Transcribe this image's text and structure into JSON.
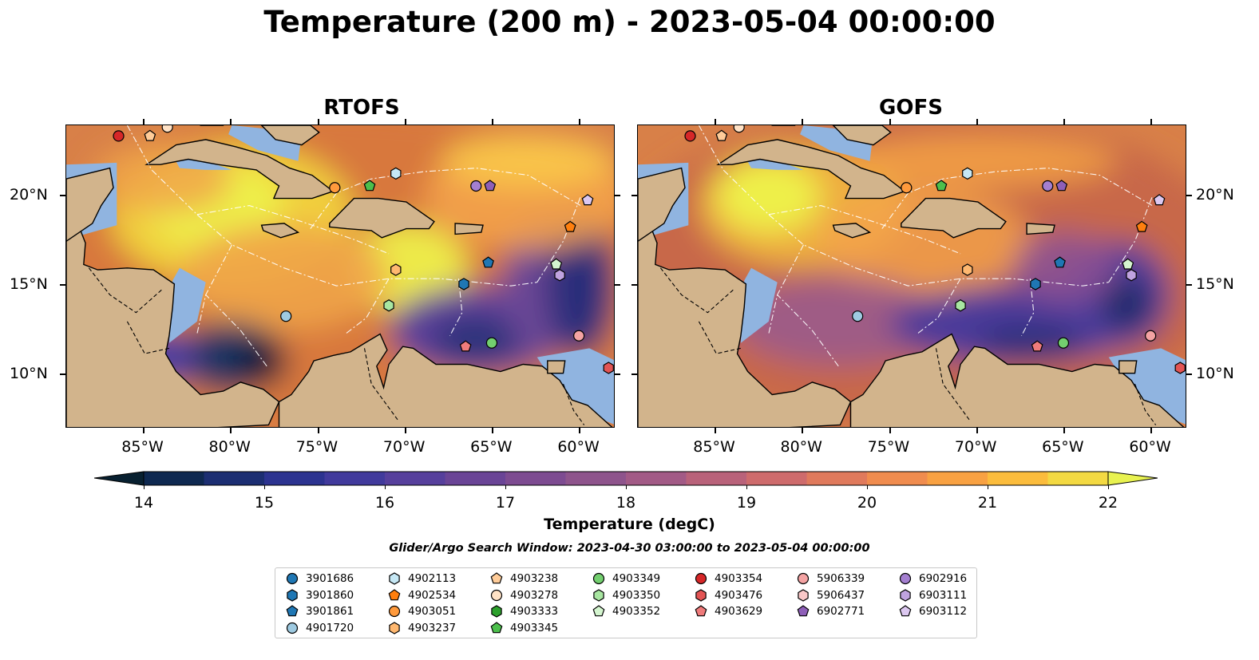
{
  "title": "Temperature (200 m) - 2023-05-04 00:00:00",
  "panels": [
    {
      "title": "RTOFS"
    },
    {
      "title": "GOFS"
    }
  ],
  "axes": {
    "x_ticks": [
      "85°W",
      "80°W",
      "75°W",
      "70°W",
      "65°W",
      "60°W"
    ],
    "y_ticks": [
      "20°N",
      "15°N",
      "10°N"
    ],
    "lon_range": [
      -89.5,
      -58.0
    ],
    "lat_range": [
      7.0,
      24.0
    ]
  },
  "colorbar": {
    "label": "Temperature (degC)",
    "ticks": [
      "14",
      "15",
      "16",
      "17",
      "18",
      "19",
      "20",
      "21",
      "22"
    ],
    "range": [
      14,
      22
    ],
    "step": 0.5,
    "extend": "both"
  },
  "search_window": "Glider/Argo Search Window: 2023-04-30 03:00:00 to 2023-05-04 00:00:00",
  "legend": {
    "items": [
      {
        "id": "3901686",
        "marker": "circle",
        "color": "#1f77b4"
      },
      {
        "id": "3901860",
        "marker": "hexagon",
        "color": "#1f77b4"
      },
      {
        "id": "3901861",
        "marker": "pentagon",
        "color": "#1f77b4"
      },
      {
        "id": "4901720",
        "marker": "circle",
        "color": "#9ecae1"
      },
      {
        "id": "4902113",
        "marker": "hexagon",
        "color": "#c6e8f5"
      },
      {
        "id": "4902534",
        "marker": "pentagon",
        "color": "#ff7f0e"
      },
      {
        "id": "4903051",
        "marker": "circle",
        "color": "#ff9a3c"
      },
      {
        "id": "4903237",
        "marker": "hexagon",
        "color": "#ffb870"
      },
      {
        "id": "4903238",
        "marker": "pentagon",
        "color": "#ffcc99"
      },
      {
        "id": "4903278",
        "marker": "circle",
        "color": "#ffe2c6"
      },
      {
        "id": "4903333",
        "marker": "hexagon",
        "color": "#2ca02c"
      },
      {
        "id": "4903345",
        "marker": "pentagon",
        "color": "#4cbf4c"
      },
      {
        "id": "4903349",
        "marker": "circle",
        "color": "#73cf6f"
      },
      {
        "id": "4903350",
        "marker": "hexagon",
        "color": "#a8e6a1"
      },
      {
        "id": "4903352",
        "marker": "pentagon",
        "color": "#d4f5cf"
      },
      {
        "id": "4903354",
        "marker": "circle",
        "color": "#d62728"
      },
      {
        "id": "4903476",
        "marker": "hexagon",
        "color": "#e35454"
      },
      {
        "id": "4903629",
        "marker": "pentagon",
        "color": "#ef7b7b"
      },
      {
        "id": "5906339",
        "marker": "circle",
        "color": "#f4a3a3"
      },
      {
        "id": "5906437",
        "marker": "hexagon",
        "color": "#fac8c8"
      },
      {
        "id": "6902771",
        "marker": "pentagon",
        "color": "#8e5fb8"
      },
      {
        "id": "6902916",
        "marker": "circle",
        "color": "#a47fd0"
      },
      {
        "id": "6903111",
        "marker": "hexagon",
        "color": "#c0a3e0"
      },
      {
        "id": "6903112",
        "marker": "pentagon",
        "color": "#dcc8f0"
      }
    ]
  },
  "floats": [
    {
      "id": "4903354",
      "lon": -86.5,
      "lat": 23.4
    },
    {
      "id": "4903238",
      "lon": -84.7,
      "lat": 23.4
    },
    {
      "id": "4903278",
      "lon": -83.7,
      "lat": 23.9
    },
    {
      "id": "4903051",
      "lon": -74.1,
      "lat": 20.5
    },
    {
      "id": "4903345",
      "lon": -72.1,
      "lat": 20.6
    },
    {
      "id": "4902113",
      "lon": -70.6,
      "lat": 21.3
    },
    {
      "id": "6902916",
      "lon": -66.0,
      "lat": 20.6
    },
    {
      "id": "6902771",
      "lon": -65.2,
      "lat": 20.6
    },
    {
      "id": "6903112",
      "lon": -59.6,
      "lat": 19.8
    },
    {
      "id": "4902534",
      "lon": -60.6,
      "lat": 18.3
    },
    {
      "id": "3901861",
      "lon": -65.3,
      "lat": 16.3
    },
    {
      "id": "4903237",
      "lon": -70.6,
      "lat": 15.9
    },
    {
      "id": "3901860",
      "lon": -66.7,
      "lat": 15.1
    },
    {
      "id": "6903111",
      "lon": -61.2,
      "lat": 15.6
    },
    {
      "id": "4903352",
      "lon": -61.4,
      "lat": 16.2
    },
    {
      "id": "4903350",
      "lon": -71.0,
      "lat": 13.9
    },
    {
      "id": "4901720",
      "lon": -76.9,
      "lat": 13.3
    },
    {
      "id": "4903629",
      "lon": -66.6,
      "lat": 11.6
    },
    {
      "id": "4903349",
      "lon": -65.1,
      "lat": 11.8
    },
    {
      "id": "5906339",
      "lon": -60.1,
      "lat": 12.2
    },
    {
      "id": "4903476",
      "lon": -58.4,
      "lat": 10.4
    }
  ]
}
